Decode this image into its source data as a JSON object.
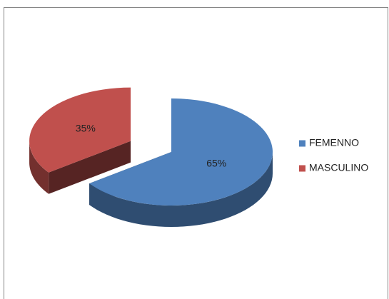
{
  "chart_data": {
    "type": "pie",
    "categories": [
      "FEMENNO",
      "MASCULINO"
    ],
    "values": [
      65,
      35
    ],
    "value_labels": [
      "65%",
      "35%"
    ],
    "colors": [
      "#4f81bd",
      "#c0504d"
    ],
    "legend": "right"
  }
}
